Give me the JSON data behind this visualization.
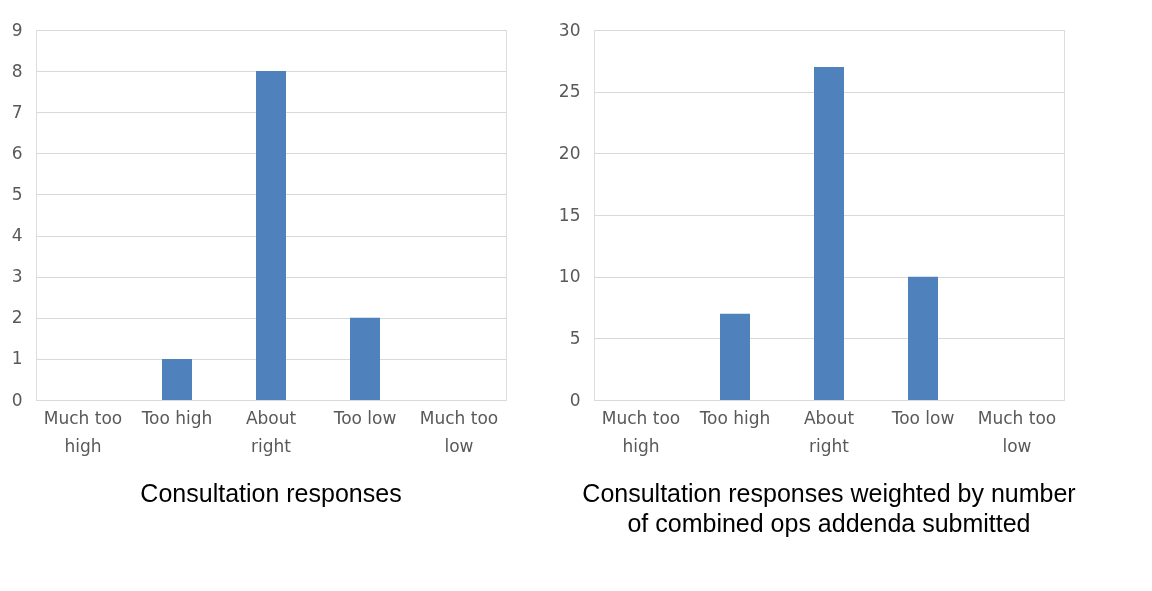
{
  "chart_data": [
    {
      "type": "bar",
      "title": "Consultation responses",
      "categories": [
        "Much too high",
        "Too high",
        "About right",
        "Too low",
        "Much too low"
      ],
      "values": [
        0,
        1,
        8,
        2,
        0
      ],
      "color": "#4f81bd",
      "ylim": [
        0,
        9
      ],
      "yticks": [
        0,
        1,
        2,
        3,
        4,
        5,
        6,
        7,
        8,
        9
      ],
      "grid": "y"
    },
    {
      "type": "bar",
      "title": "Consultation responses weighted by number of combined ops addenda submitted",
      "categories": [
        "Much too high",
        "Too high",
        "About right",
        "Too low",
        "Much too low"
      ],
      "values": [
        0,
        7,
        27,
        10,
        0
      ],
      "color": "#4f81bd",
      "ylim": [
        0,
        30
      ],
      "yticks": [
        0,
        5,
        10,
        15,
        20,
        25,
        30
      ],
      "grid": "y"
    }
  ]
}
